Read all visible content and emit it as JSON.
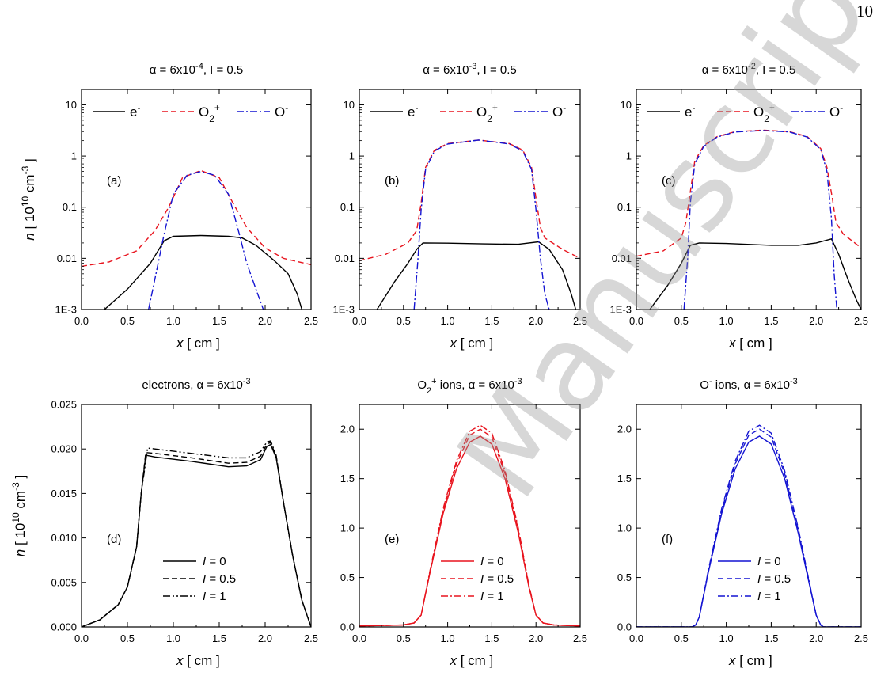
{
  "page_number": "10",
  "watermark": "Manuscript",
  "colors": {
    "electron": "#000000",
    "o2plus": "#e8141e",
    "ominus": "#1414d2"
  },
  "chart_data": [
    {
      "panel": "(a)",
      "type": "line",
      "title": "α = 6x10-4, I = 0.5",
      "xlabel": "x [ cm ]",
      "ylabel": "n [ 1010 cm-3 ]",
      "xlim": [
        0,
        2.5
      ],
      "ylim": [
        0.001,
        20
      ],
      "yscale": "log",
      "xticks": [
        "0.0",
        "0.5",
        "1.0",
        "1.5",
        "2.0",
        "2.5"
      ],
      "yticks": [
        "1E-3",
        "0.01",
        "0.1",
        "1",
        "10"
      ],
      "legend": [
        "e-",
        "O2+",
        "O-"
      ],
      "series": [
        {
          "name": "e-",
          "style": "solid",
          "color": "#000000",
          "x": [
            0.25,
            0.5,
            0.75,
            0.9,
            1.0,
            1.3,
            1.6,
            1.75,
            1.9,
            2.1,
            2.25,
            2.35,
            2.4
          ],
          "y": [
            0.001,
            0.0025,
            0.008,
            0.022,
            0.027,
            0.028,
            0.027,
            0.025,
            0.018,
            0.009,
            0.005,
            0.002,
            0.001
          ]
        },
        {
          "name": "O2+",
          "style": "dashed",
          "color": "#e8141e",
          "x": [
            0,
            0.3,
            0.6,
            0.8,
            0.95,
            1.1,
            1.3,
            1.5,
            1.65,
            1.8,
            2.0,
            2.2,
            2.5
          ],
          "y": [
            0.007,
            0.0085,
            0.014,
            0.035,
            0.1,
            0.38,
            0.52,
            0.38,
            0.12,
            0.04,
            0.016,
            0.01,
            0.0075
          ]
        },
        {
          "name": "O-",
          "style": "dashdot",
          "color": "#1414d2",
          "x": [
            0.73,
            0.8,
            0.9,
            1.0,
            1.15,
            1.3,
            1.45,
            1.6,
            1.7,
            1.8,
            1.9,
            1.98
          ],
          "y": [
            0.001,
            0.004,
            0.03,
            0.18,
            0.42,
            0.5,
            0.42,
            0.18,
            0.04,
            0.008,
            0.0025,
            0.001
          ]
        }
      ]
    },
    {
      "panel": "(b)",
      "type": "line",
      "title": "α = 6x10-3, I = 0.5",
      "xlabel": "x [ cm ]",
      "ylabel": "",
      "xlim": [
        0,
        2.5
      ],
      "ylim": [
        0.001,
        20
      ],
      "yscale": "log",
      "xticks": [
        "0.0",
        "0.5",
        "1.0",
        "1.5",
        "2.0",
        "2.5"
      ],
      "yticks": [
        "1E-3",
        "0.01",
        "0.1",
        "1",
        "10"
      ],
      "legend": [
        "e-",
        "O2+",
        "O-"
      ],
      "series": [
        {
          "name": "e-",
          "style": "solid",
          "color": "#000000",
          "x": [
            0.2,
            0.4,
            0.55,
            0.65,
            0.72,
            1.0,
            1.4,
            1.8,
            2.03,
            2.15,
            2.3,
            2.4,
            2.45
          ],
          "y": [
            0.001,
            0.0035,
            0.008,
            0.015,
            0.02,
            0.0198,
            0.0192,
            0.0188,
            0.021,
            0.015,
            0.006,
            0.002,
            0.001
          ]
        },
        {
          "name": "O2+",
          "style": "dashed",
          "color": "#e8141e",
          "x": [
            0,
            0.3,
            0.55,
            0.65,
            0.7,
            0.75,
            0.85,
            1.0,
            1.35,
            1.7,
            1.85,
            1.95,
            2.0,
            2.05,
            2.1,
            2.3,
            2.5
          ],
          "y": [
            0.009,
            0.012,
            0.02,
            0.035,
            0.12,
            0.6,
            1.3,
            1.75,
            2.05,
            1.75,
            1.3,
            0.6,
            0.15,
            0.04,
            0.025,
            0.015,
            0.01
          ]
        },
        {
          "name": "O-",
          "style": "dashdot",
          "color": "#1414d2",
          "x": [
            0.62,
            0.66,
            0.7,
            0.75,
            0.85,
            1.0,
            1.35,
            1.7,
            1.85,
            1.95,
            2.0,
            2.05,
            2.1,
            2.15
          ],
          "y": [
            0.001,
            0.008,
            0.09,
            0.55,
            1.25,
            1.72,
            2.05,
            1.72,
            1.25,
            0.55,
            0.09,
            0.01,
            0.002,
            0.001
          ]
        }
      ]
    },
    {
      "panel": "(c)",
      "type": "line",
      "title": "α = 6x10-2, I = 0.5",
      "xlabel": "x [ cm ]",
      "ylabel": "",
      "xlim": [
        0,
        2.5
      ],
      "ylim": [
        0.001,
        20
      ],
      "yscale": "log",
      "xticks": [
        "0.0",
        "0.5",
        "1.0",
        "1.5",
        "2.0",
        "2.5"
      ],
      "yticks": [
        "1E-3",
        "0.01",
        "0.1",
        "1",
        "10"
      ],
      "legend": [
        "e-",
        "O2+",
        "O-"
      ],
      "series": [
        {
          "name": "e-",
          "style": "solid",
          "color": "#000000",
          "x": [
            0.15,
            0.35,
            0.5,
            0.6,
            0.7,
            1.0,
            1.5,
            1.8,
            2.0,
            2.17,
            2.25,
            2.35,
            2.45,
            2.5
          ],
          "y": [
            0.001,
            0.003,
            0.008,
            0.018,
            0.02,
            0.0195,
            0.018,
            0.018,
            0.02,
            0.024,
            0.012,
            0.004,
            0.0015,
            0.001
          ]
        },
        {
          "name": "O2+",
          "style": "dashed",
          "color": "#e8141e",
          "x": [
            0,
            0.3,
            0.5,
            0.55,
            0.6,
            0.65,
            0.75,
            0.9,
            1.1,
            1.4,
            1.7,
            1.9,
            2.05,
            2.12,
            2.18,
            2.22,
            2.3,
            2.5
          ],
          "y": [
            0.011,
            0.014,
            0.025,
            0.05,
            0.2,
            0.8,
            1.6,
            2.4,
            3.0,
            3.2,
            3.0,
            2.4,
            1.4,
            0.6,
            0.15,
            0.05,
            0.03,
            0.016
          ]
        },
        {
          "name": "O-",
          "style": "dashdot",
          "color": "#1414d2",
          "x": [
            0.53,
            0.57,
            0.6,
            0.65,
            0.75,
            0.9,
            1.1,
            1.4,
            1.7,
            1.9,
            2.05,
            2.12,
            2.17,
            2.2,
            2.23
          ],
          "y": [
            0.001,
            0.01,
            0.12,
            0.7,
            1.55,
            2.35,
            2.95,
            3.15,
            2.95,
            2.35,
            1.35,
            0.5,
            0.06,
            0.005,
            0.001
          ]
        }
      ]
    },
    {
      "panel": "(d)",
      "type": "line",
      "title": "electrons, α = 6x10-3",
      "xlabel": "x [ cm ]",
      "ylabel": "n [ 1010 cm-3 ]",
      "xlim": [
        0,
        2.5
      ],
      "ylim": [
        0,
        0.025
      ],
      "yscale": "linear",
      "xticks": [
        "0.0",
        "0.5",
        "1.0",
        "1.5",
        "2.0",
        "2.5"
      ],
      "yticks": [
        "0.000",
        "0.005",
        "0.010",
        "0.015",
        "0.020",
        "0.025"
      ],
      "legend": [
        "I = 0",
        "I = 0.5",
        "I = 1"
      ],
      "series": [
        {
          "name": "I = 0",
          "style": "solid",
          "color": "#000000",
          "x": [
            0,
            0.2,
            0.4,
            0.5,
            0.6,
            0.65,
            0.7,
            0.8,
            1.2,
            1.6,
            1.8,
            1.95,
            2.02,
            2.06,
            2.12,
            2.2,
            2.3,
            2.4,
            2.5
          ],
          "y": [
            0,
            0.0008,
            0.0025,
            0.0045,
            0.009,
            0.015,
            0.0193,
            0.0191,
            0.0186,
            0.018,
            0.0181,
            0.0188,
            0.0203,
            0.0205,
            0.019,
            0.014,
            0.008,
            0.003,
            0
          ]
        },
        {
          "name": "I = 0.5",
          "style": "dashed",
          "color": "#000000",
          "x": [
            0,
            0.2,
            0.4,
            0.5,
            0.6,
            0.65,
            0.7,
            0.8,
            1.2,
            1.6,
            1.8,
            1.95,
            2.02,
            2.06,
            2.12,
            2.2,
            2.3,
            2.4,
            2.5
          ],
          "y": [
            0,
            0.0008,
            0.0025,
            0.0045,
            0.009,
            0.015,
            0.0196,
            0.0195,
            0.019,
            0.0184,
            0.0185,
            0.0192,
            0.0206,
            0.0207,
            0.0192,
            0.014,
            0.008,
            0.003,
            0
          ]
        },
        {
          "name": "I = 1",
          "style": "dashdotdot",
          "color": "#000000",
          "x": [
            0,
            0.2,
            0.4,
            0.5,
            0.6,
            0.65,
            0.72,
            0.8,
            1.2,
            1.6,
            1.8,
            1.95,
            2.02,
            2.06,
            2.12,
            2.2,
            2.3,
            2.4,
            2.5
          ],
          "y": [
            0,
            0.0008,
            0.0025,
            0.0045,
            0.009,
            0.015,
            0.0201,
            0.02,
            0.0195,
            0.019,
            0.019,
            0.0197,
            0.0208,
            0.0209,
            0.0193,
            0.014,
            0.008,
            0.003,
            0
          ]
        }
      ]
    },
    {
      "panel": "(e)",
      "type": "line",
      "title": "O2+ ions, α = 6x10-3",
      "xlabel": "x [ cm ]",
      "ylabel": "",
      "xlim": [
        0,
        2.5
      ],
      "ylim": [
        0,
        2.25
      ],
      "yscale": "linear",
      "xticks": [
        "0.0",
        "0.5",
        "1.0",
        "1.5",
        "2.0",
        "2.5"
      ],
      "yticks": [
        "0.0",
        "0.5",
        "1.0",
        "1.5",
        "2.0"
      ],
      "legend": [
        "I = 0",
        "I = 0.5",
        "I = 1"
      ],
      "series": [
        {
          "name": "I = 0",
          "style": "solid",
          "color": "#e8141e",
          "x": [
            0,
            0.5,
            0.62,
            0.7,
            0.8,
            0.95,
            1.1,
            1.25,
            1.37,
            1.5,
            1.65,
            1.8,
            1.92,
            2.0,
            2.08,
            2.2,
            2.5
          ],
          "y": [
            0.01,
            0.02,
            0.04,
            0.12,
            0.55,
            1.15,
            1.6,
            1.87,
            1.93,
            1.85,
            1.5,
            0.95,
            0.4,
            0.12,
            0.04,
            0.02,
            0.01
          ]
        },
        {
          "name": "I = 0.5",
          "style": "dashed",
          "color": "#e8141e",
          "x": [
            0,
            0.5,
            0.62,
            0.7,
            0.8,
            0.95,
            1.1,
            1.25,
            1.37,
            1.5,
            1.65,
            1.8,
            1.92,
            2.0,
            2.08,
            2.2,
            2.5
          ],
          "y": [
            0.01,
            0.02,
            0.04,
            0.12,
            0.56,
            1.18,
            1.65,
            1.94,
            2.0,
            1.92,
            1.55,
            0.98,
            0.41,
            0.12,
            0.04,
            0.02,
            0.01
          ]
        },
        {
          "name": "I = 1",
          "style": "dashdot",
          "color": "#e8141e",
          "x": [
            0,
            0.5,
            0.62,
            0.7,
            0.8,
            0.95,
            1.1,
            1.25,
            1.37,
            1.5,
            1.65,
            1.8,
            1.92,
            2.0,
            2.08,
            2.2,
            2.5
          ],
          "y": [
            0.01,
            0.02,
            0.04,
            0.12,
            0.57,
            1.2,
            1.68,
            1.98,
            2.04,
            1.96,
            1.58,
            1.0,
            0.42,
            0.12,
            0.04,
            0.02,
            0.01
          ]
        }
      ]
    },
    {
      "panel": "(f)",
      "type": "line",
      "title": "O- ions, α = 6x10-3",
      "xlabel": "x [ cm ]",
      "ylabel": "",
      "xlim": [
        0,
        2.5
      ],
      "ylim": [
        0,
        2.25
      ],
      "yscale": "linear",
      "xticks": [
        "0.0",
        "0.5",
        "1.0",
        "1.5",
        "2.0",
        "2.5"
      ],
      "yticks": [
        "0.0",
        "0.5",
        "1.0",
        "1.5",
        "2.0"
      ],
      "legend": [
        "I = 0",
        "I = 0.5",
        "I = 1"
      ],
      "series": [
        {
          "name": "I = 0",
          "style": "solid",
          "color": "#1414d2",
          "x": [
            0,
            0.62,
            0.66,
            0.7,
            0.8,
            0.95,
            1.1,
            1.25,
            1.37,
            1.5,
            1.65,
            1.8,
            1.92,
            2.0,
            2.05,
            2.08,
            2.5
          ],
          "y": [
            0,
            0,
            0.02,
            0.1,
            0.55,
            1.15,
            1.6,
            1.87,
            1.93,
            1.85,
            1.5,
            0.95,
            0.45,
            0.12,
            0.02,
            0,
            0
          ]
        },
        {
          "name": "I = 0.5",
          "style": "dashed",
          "color": "#1414d2",
          "x": [
            0,
            0.62,
            0.66,
            0.7,
            0.8,
            0.95,
            1.1,
            1.25,
            1.37,
            1.5,
            1.65,
            1.8,
            1.92,
            2.0,
            2.05,
            2.08,
            2.5
          ],
          "y": [
            0,
            0,
            0.02,
            0.1,
            0.56,
            1.18,
            1.65,
            1.94,
            2.0,
            1.92,
            1.55,
            0.98,
            0.46,
            0.12,
            0.02,
            0,
            0
          ]
        },
        {
          "name": "I = 1",
          "style": "dashdot",
          "color": "#1414d2",
          "x": [
            0,
            0.62,
            0.66,
            0.7,
            0.8,
            0.95,
            1.1,
            1.25,
            1.37,
            1.5,
            1.65,
            1.8,
            1.92,
            2.0,
            2.05,
            2.08,
            2.5
          ],
          "y": [
            0,
            0,
            0.02,
            0.1,
            0.57,
            1.2,
            1.68,
            1.98,
            2.04,
            1.96,
            1.58,
            1.0,
            0.47,
            0.12,
            0.02,
            0,
            0
          ]
        }
      ]
    }
  ]
}
